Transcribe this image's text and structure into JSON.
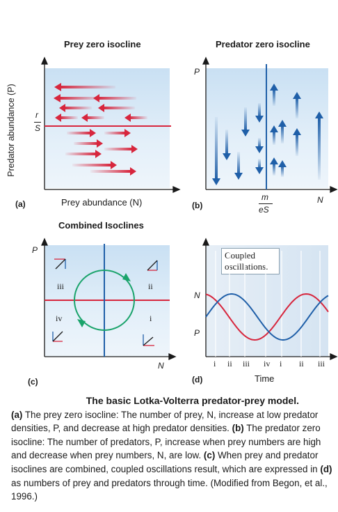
{
  "panel_a": {
    "title": "Prey zero isocline",
    "y_axis_label": "Predator abundance (P)",
    "x_axis_label": "Prey abundance (N)",
    "isocline_label_num": "r",
    "isocline_label_den": "S",
    "letter": "(a)"
  },
  "panel_b": {
    "title": "Predator zero isocline",
    "y_axis_label": "P",
    "x_axis_label": "N",
    "isocline_label_num": "m",
    "isocline_label_den": "eS",
    "letter": "(b)"
  },
  "panel_c": {
    "title": "Combined Isoclines",
    "y_axis_label": "P",
    "x_axis_label": "N",
    "quadrants": [
      "i",
      "ii",
      "iii",
      "iv"
    ],
    "letter": "(c)"
  },
  "panel_d": {
    "y_labels": [
      "N",
      "P"
    ],
    "x_axis_label": "Time",
    "phase_ticks": [
      "i",
      "ii",
      "iii",
      "iv",
      "i",
      "ii",
      "iii"
    ],
    "callout": "Coupled oscillations.",
    "letter": "(d)"
  },
  "caption": {
    "title": "The basic Lotka-Volterra predator-prey model.",
    "a_label": "(a)",
    "a_text": "The prey zero isocline: The number of prey, N, increase at low predator densities, P, and decrease at high predator densities.",
    "b_label": "(b)",
    "b_text": "The predator zero isocline: The number of predators, P, increase when prey numbers are high and decrease when prey numbers, N, are low.",
    "c_label": "(c)",
    "c_text": "When prey and predator isoclines are combined, coupled oscillations result, which are expressed in",
    "d_label": "(d)",
    "d_text": "as numbers of prey and predators through time. (Modified from Begon, et al., 1996.)"
  },
  "colors": {
    "red": "#d7263d",
    "blue": "#1f5fa8",
    "green": "#1aa36b",
    "axis": "#1a1a1a"
  }
}
